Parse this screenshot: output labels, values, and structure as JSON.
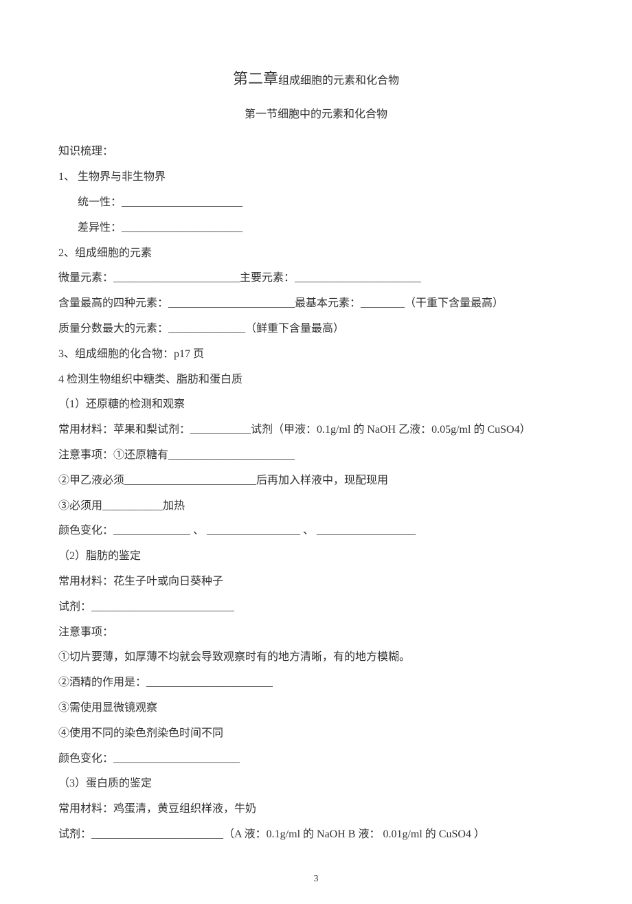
{
  "chapter": {
    "prefix": "第二章",
    "suffix": "组成细胞的元素和化合物"
  },
  "section": "第一节细胞中的元素和化合物",
  "lines": {
    "l1": "知识梳理：",
    "l2": "1、 生物界与非生物界",
    "l3": "统一性：______________________",
    "l4": "差异性：______________________",
    "l5": "2、组成细胞的元素",
    "l6": "微量元素：_______________________主要元素：_______________________",
    "l7": "含量最高的四种元素：_______________________最基本元素：________（干重下含量最高）",
    "l8": "质量分数最大的元素：______________（鲜重下含量最高）",
    "l9": "3、组成细胞的化合物：p17 页",
    "l10": "4 检测生物组织中糖类、脂肪和蛋白质",
    "l11": "（1）还原糖的检测和观察",
    "l12": "常用材料：苹果和梨试剂：___________试剂（甲液：0.1g/ml 的 NaOH   乙液：0.05g/ml 的 CuSO4）",
    "l13": "注意事项：①还原糖有_______________________",
    "l14": "②甲乙液必须________________________后再加入样液中，现配现用",
    "l15": "③必须用___________加热",
    "l16": "颜色变化：______________  、  _________________   、    __________________",
    "l17": "（2）脂肪的鉴定",
    "l18": "常用材料：花生子叶或向日葵种子",
    "l19": "试剂：__________________________",
    "l20": "注意事项：",
    "l21": "①切片要薄，如厚薄不均就会导致观察时有的地方清晰，有的地方模糊。",
    "l22": "②酒精的作用是：_______________________",
    "l23": "③需使用显微镜观察",
    "l24": "④使用不同的染色剂染色时间不同",
    "l25": "颜色变化：_______________________",
    "l26": "（3）蛋白质的鉴定",
    "l27": "常用材料：鸡蛋清，黄豆组织样液，牛奶",
    "l28": "试剂：________________________（A 液：0.1g/ml 的 NaOH   B 液：  0.01g/ml 的 CuSO4 ）"
  },
  "pageNumber": "3"
}
